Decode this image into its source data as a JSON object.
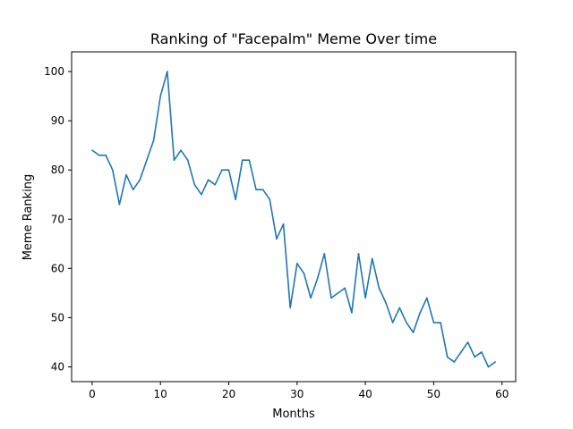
{
  "chart_data": {
    "type": "line",
    "title": "Ranking of \"Facepalm\" Meme Over time",
    "xlabel": "Months",
    "ylabel": "Meme Ranking",
    "xlim": [
      -3,
      62
    ],
    "ylim": [
      37,
      104
    ],
    "xticks": [
      0,
      10,
      20,
      30,
      40,
      50,
      60
    ],
    "yticks": [
      40,
      50,
      60,
      70,
      80,
      90,
      100
    ],
    "grid": false,
    "line_color": "#1f77b4",
    "series": [
      {
        "x": [
          0,
          1,
          2,
          3,
          4,
          5,
          6,
          7,
          8,
          9,
          10,
          11,
          12,
          13,
          14,
          15,
          16,
          17,
          18,
          19,
          20,
          21,
          22,
          23,
          24,
          25,
          26,
          27,
          28,
          29,
          30,
          31,
          32,
          33,
          34,
          35,
          36,
          37,
          38,
          39,
          40,
          41,
          42,
          43,
          44,
          45,
          46,
          47,
          48,
          49,
          50,
          51,
          52,
          53,
          54,
          55,
          56,
          57,
          58,
          59
        ],
        "values": [
          84,
          83,
          83,
          80,
          73,
          79,
          76,
          78,
          82,
          86,
          95,
          100,
          82,
          84,
          82,
          77,
          75,
          78,
          77,
          80,
          80,
          74,
          82,
          82,
          76,
          76,
          74,
          66,
          69,
          52,
          61,
          59,
          54,
          58,
          63,
          54,
          55,
          56,
          51,
          63,
          54,
          62,
          56,
          53,
          49,
          52,
          49,
          47,
          51,
          54,
          49,
          49,
          42,
          41,
          43,
          45,
          42,
          43,
          40,
          41
        ]
      }
    ]
  }
}
